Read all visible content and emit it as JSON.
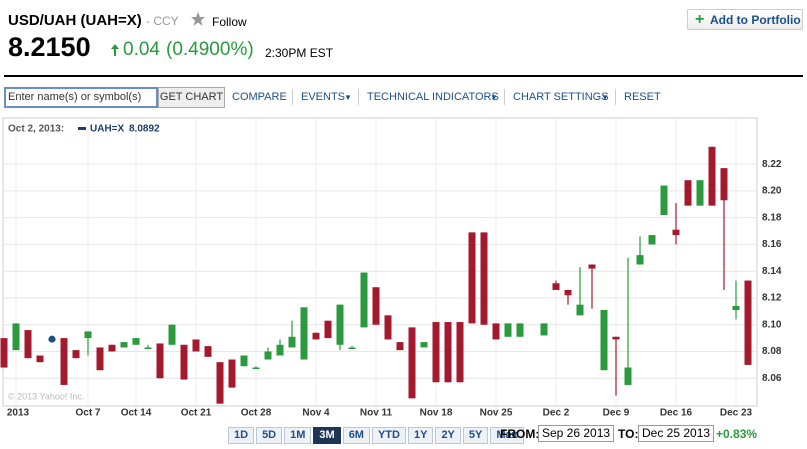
{
  "header": {
    "title": "USD/UAH (UAH=X)",
    "exchange": "- CCY",
    "follow": "Follow",
    "price": "8.2150",
    "change": "0.04",
    "change_percent": "(0.4900%)",
    "time": "2:30PM EST",
    "add_button": "Add to Portfolio"
  },
  "toolbar": {
    "input_placeholder": "Enter name(s) or symbol(s)",
    "get_chart": "GET CHART",
    "items": [
      "COMPARE",
      "EVENTS",
      "TECHNICAL INDICATORS",
      "CHART SETTINGS",
      "RESET"
    ]
  },
  "chart_data": {
    "type": "candlestick",
    "legend_date": "Oct 2, 2013:",
    "legend_value": 8.0892,
    "watermark": "© 2013 Yahoo! Inc.",
    "categories": [
      null,
      "2013",
      null,
      null,
      null,
      null,
      null,
      "Oct 7",
      null,
      null,
      null,
      "Oct 14",
      null,
      null,
      null,
      null,
      "Oct 21",
      null,
      null,
      null,
      null,
      "Oct 28",
      null,
      null,
      null,
      null,
      "Nov 4",
      null,
      null,
      null,
      null,
      "Nov 11",
      null,
      null,
      null,
      null,
      "Nov 18",
      null,
      null,
      null,
      null,
      "Nov 25",
      null,
      null,
      null,
      null,
      "Dec 2",
      null,
      null,
      null,
      null,
      "Dec 9",
      null,
      null,
      null,
      null,
      "Dec 16",
      null,
      null,
      null,
      null,
      "Dec 23",
      null
    ],
    "series": [
      {
        "name": "UAH=X",
        "up_color": "#2a9a3c",
        "down_color": "#a5192e",
        "open": [
          8.09,
          8.081,
          8.096,
          8.077,
          8.089,
          8.09,
          8.081,
          8.09,
          8.083,
          8.085,
          8.083,
          8.085,
          8.083,
          8.086,
          8.085,
          8.085,
          8.089,
          8.084,
          8.072,
          8.074,
          8.069,
          8.068,
          8.074,
          8.077,
          8.083,
          8.074,
          8.094,
          8.103,
          8.085,
          8.083,
          8.098,
          8.128,
          8.107,
          8.087,
          8.098,
          8.083,
          8.102,
          8.102,
          8.102,
          8.169,
          8.169,
          8.101,
          8.091,
          8.091,
          null,
          8.092,
          8.131,
          8.126,
          8.107,
          8.145,
          8.066,
          8.091,
          8.055,
          8.145,
          8.16,
          8.182,
          8.171,
          8.208,
          8.189,
          8.233,
          8.217,
          8.111,
          8.133
        ],
        "high": [
          8.09,
          8.101,
          8.096,
          8.077,
          8.089,
          8.09,
          8.081,
          8.095,
          8.083,
          8.085,
          8.087,
          8.09,
          8.085,
          8.086,
          8.1,
          8.085,
          8.089,
          8.084,
          8.072,
          8.074,
          8.077,
          8.069,
          8.083,
          8.089,
          8.103,
          8.113,
          8.094,
          8.103,
          8.115,
          8.084,
          8.139,
          8.128,
          8.107,
          8.087,
          8.098,
          8.087,
          8.102,
          8.102,
          8.102,
          8.169,
          8.169,
          8.101,
          8.101,
          8.101,
          null,
          8.101,
          8.133,
          8.126,
          8.143,
          8.145,
          8.111,
          8.091,
          8.15,
          8.166,
          8.167,
          8.204,
          8.191,
          8.208,
          8.208,
          8.233,
          8.217,
          8.133,
          8.133
        ],
        "low": [
          8.068,
          8.081,
          8.075,
          8.072,
          8.089,
          8.055,
          8.075,
          8.077,
          8.066,
          8.08,
          8.083,
          8.085,
          8.082,
          8.06,
          8.085,
          8.059,
          8.08,
          8.076,
          8.041,
          8.053,
          8.069,
          8.067,
          8.074,
          8.077,
          8.083,
          8.074,
          8.089,
          8.09,
          8.081,
          8.082,
          8.098,
          8.1,
          8.089,
          8.081,
          8.045,
          8.083,
          8.057,
          8.057,
          8.057,
          8.101,
          8.1,
          8.089,
          8.091,
          8.091,
          null,
          8.092,
          8.126,
          8.115,
          8.107,
          8.112,
          8.066,
          8.047,
          8.055,
          8.145,
          8.16,
          8.182,
          8.16,
          8.189,
          8.189,
          8.189,
          8.126,
          8.104,
          8.07
        ],
        "close": [
          8.068,
          8.101,
          8.075,
          8.072,
          8.089,
          8.055,
          8.075,
          8.095,
          8.066,
          8.08,
          8.087,
          8.09,
          8.083,
          8.06,
          8.1,
          8.059,
          8.08,
          8.076,
          8.041,
          8.053,
          8.077,
          8.068,
          8.08,
          8.085,
          8.091,
          8.113,
          8.089,
          8.09,
          8.115,
          8.083,
          8.139,
          8.1,
          8.089,
          8.081,
          8.045,
          8.087,
          8.057,
          8.057,
          8.057,
          8.101,
          8.1,
          8.089,
          8.101,
          8.101,
          null,
          8.101,
          8.126,
          8.122,
          8.115,
          8.142,
          8.111,
          8.089,
          8.068,
          8.152,
          8.167,
          8.204,
          8.167,
          8.189,
          8.208,
          8.189,
          8.193,
          8.114,
          8.07
        ]
      }
    ],
    "ylim": [
      8.04,
      8.253
    ],
    "yticks": [
      8.06,
      8.08,
      {
        "value": 8.1,
        "label": "8.10"
      },
      8.12,
      8.14,
      8.16,
      8.18,
      {
        "value": 8.2,
        "label": "8.20"
      },
      8.22
    ],
    "grid": true
  },
  "range_bar": {
    "buttons": [
      "1D",
      "5D",
      "1M",
      "3M",
      "6M",
      "YTD",
      "1Y",
      "2Y",
      "5Y",
      "Max"
    ],
    "selected": "3M",
    "from_label": "FROM:",
    "from": "Sep 26 2013",
    "to_label": "TO:",
    "to": "Dec 25 2013",
    "change": "+0.83%"
  }
}
